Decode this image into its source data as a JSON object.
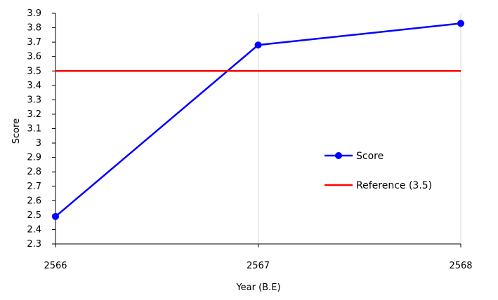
{
  "chart_data": {
    "type": "line",
    "x": [
      "2566",
      "2567",
      "2568"
    ],
    "series": [
      {
        "name": "Score",
        "values": [
          2.49,
          3.68,
          3.83
        ],
        "color": "#0000ff",
        "marker": "circle"
      },
      {
        "name": "Reference (3.5)",
        "values": [
          3.5,
          3.5,
          3.5
        ],
        "color": "#ff0000",
        "marker": "none"
      }
    ],
    "xlabel": "Year (B.E)",
    "ylabel": "Score",
    "ylim": [
      2.3,
      3.9
    ],
    "yticks": [
      "3.9",
      "3.8",
      "3.7",
      "3.6",
      "3.5",
      "3.4",
      "3.3",
      "3.2",
      "3.1",
      "3",
      "2.9",
      "2.8",
      "2.7",
      "2.6",
      "2.5",
      "2.4",
      "2.3"
    ],
    "grid": "vertical",
    "legend": "center-right"
  }
}
